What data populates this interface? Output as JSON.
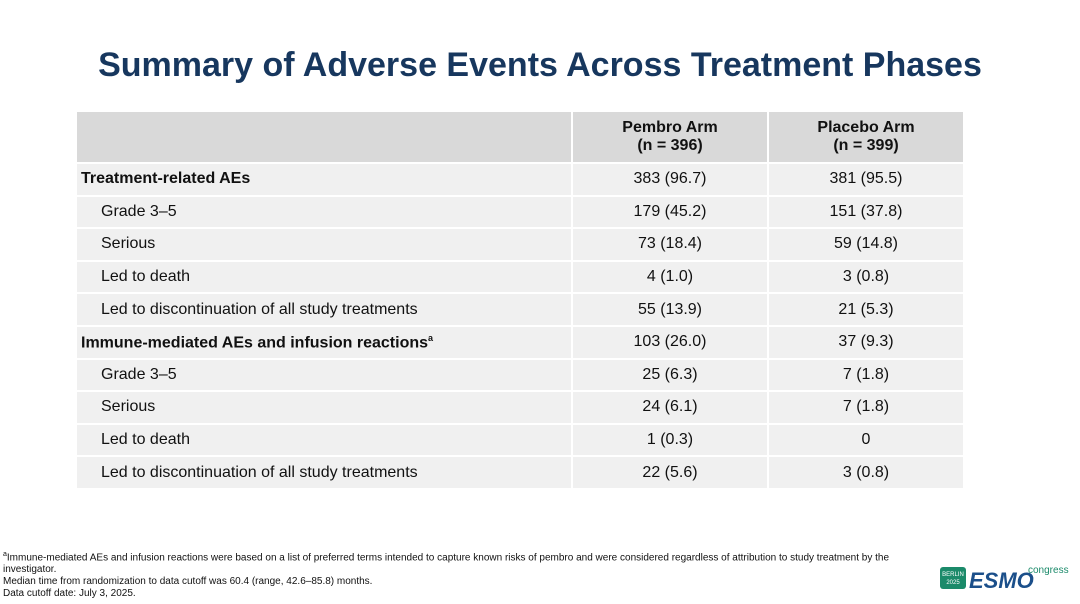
{
  "header": {
    "title": "Summary of Adverse Events Across Treatment Phases"
  },
  "table": {
    "columns": [
      {
        "name": "Pembro Arm",
        "n": "(n = 396)"
      },
      {
        "name": "Placebo Arm",
        "n": "(n = 399)"
      }
    ],
    "sections": [
      {
        "label": "Treatment-related AEs",
        "note": null,
        "values": [
          "383 (96.7)",
          "381 (95.5)"
        ],
        "rows": [
          {
            "label": "Grade 3–5",
            "values": [
              "179 (45.2)",
              "151 (37.8)"
            ]
          },
          {
            "label": "Serious",
            "values": [
              "73 (18.4)",
              "59 (14.8)"
            ]
          },
          {
            "label": "Led to death",
            "values": [
              "4 (1.0)",
              "3 (0.8)"
            ]
          },
          {
            "label": "Led to discontinuation of all study treatments",
            "values": [
              "55 (13.9)",
              "21 (5.3)"
            ]
          }
        ]
      },
      {
        "label": "Immune-mediated AEs and infusion reactions",
        "note": "a",
        "values": [
          "103 (26.0)",
          "37 (9.3)"
        ],
        "rows": [
          {
            "label": "Grade 3–5",
            "values": [
              "25 (6.3)",
              "7 (1.8)"
            ]
          },
          {
            "label": "Serious",
            "values": [
              "24 (6.1)",
              "7 (1.8)"
            ]
          },
          {
            "label": "Led to death",
            "values": [
              "1 (0.3)",
              "0"
            ]
          },
          {
            "label": "Led to discontinuation of all study treatments",
            "values": [
              "22 (5.6)",
              "3 (0.8)"
            ]
          }
        ]
      }
    ]
  },
  "footnotes": {
    "marker": "a",
    "lines": [
      "Immune-mediated AEs and infusion reactions were based on a list of preferred terms intended to capture known risks of pembro and were considered regardless of attribution to study treatment by the investigator.",
      "Median time from randomization to data cutoff was 60.4 (range, 42.6–85.8) months.",
      "Data cutoff date: July 3, 2025."
    ]
  },
  "logo": {
    "city": "BERLIN",
    "year": "2025",
    "brand": "ESMO",
    "suffix": "congress"
  }
}
